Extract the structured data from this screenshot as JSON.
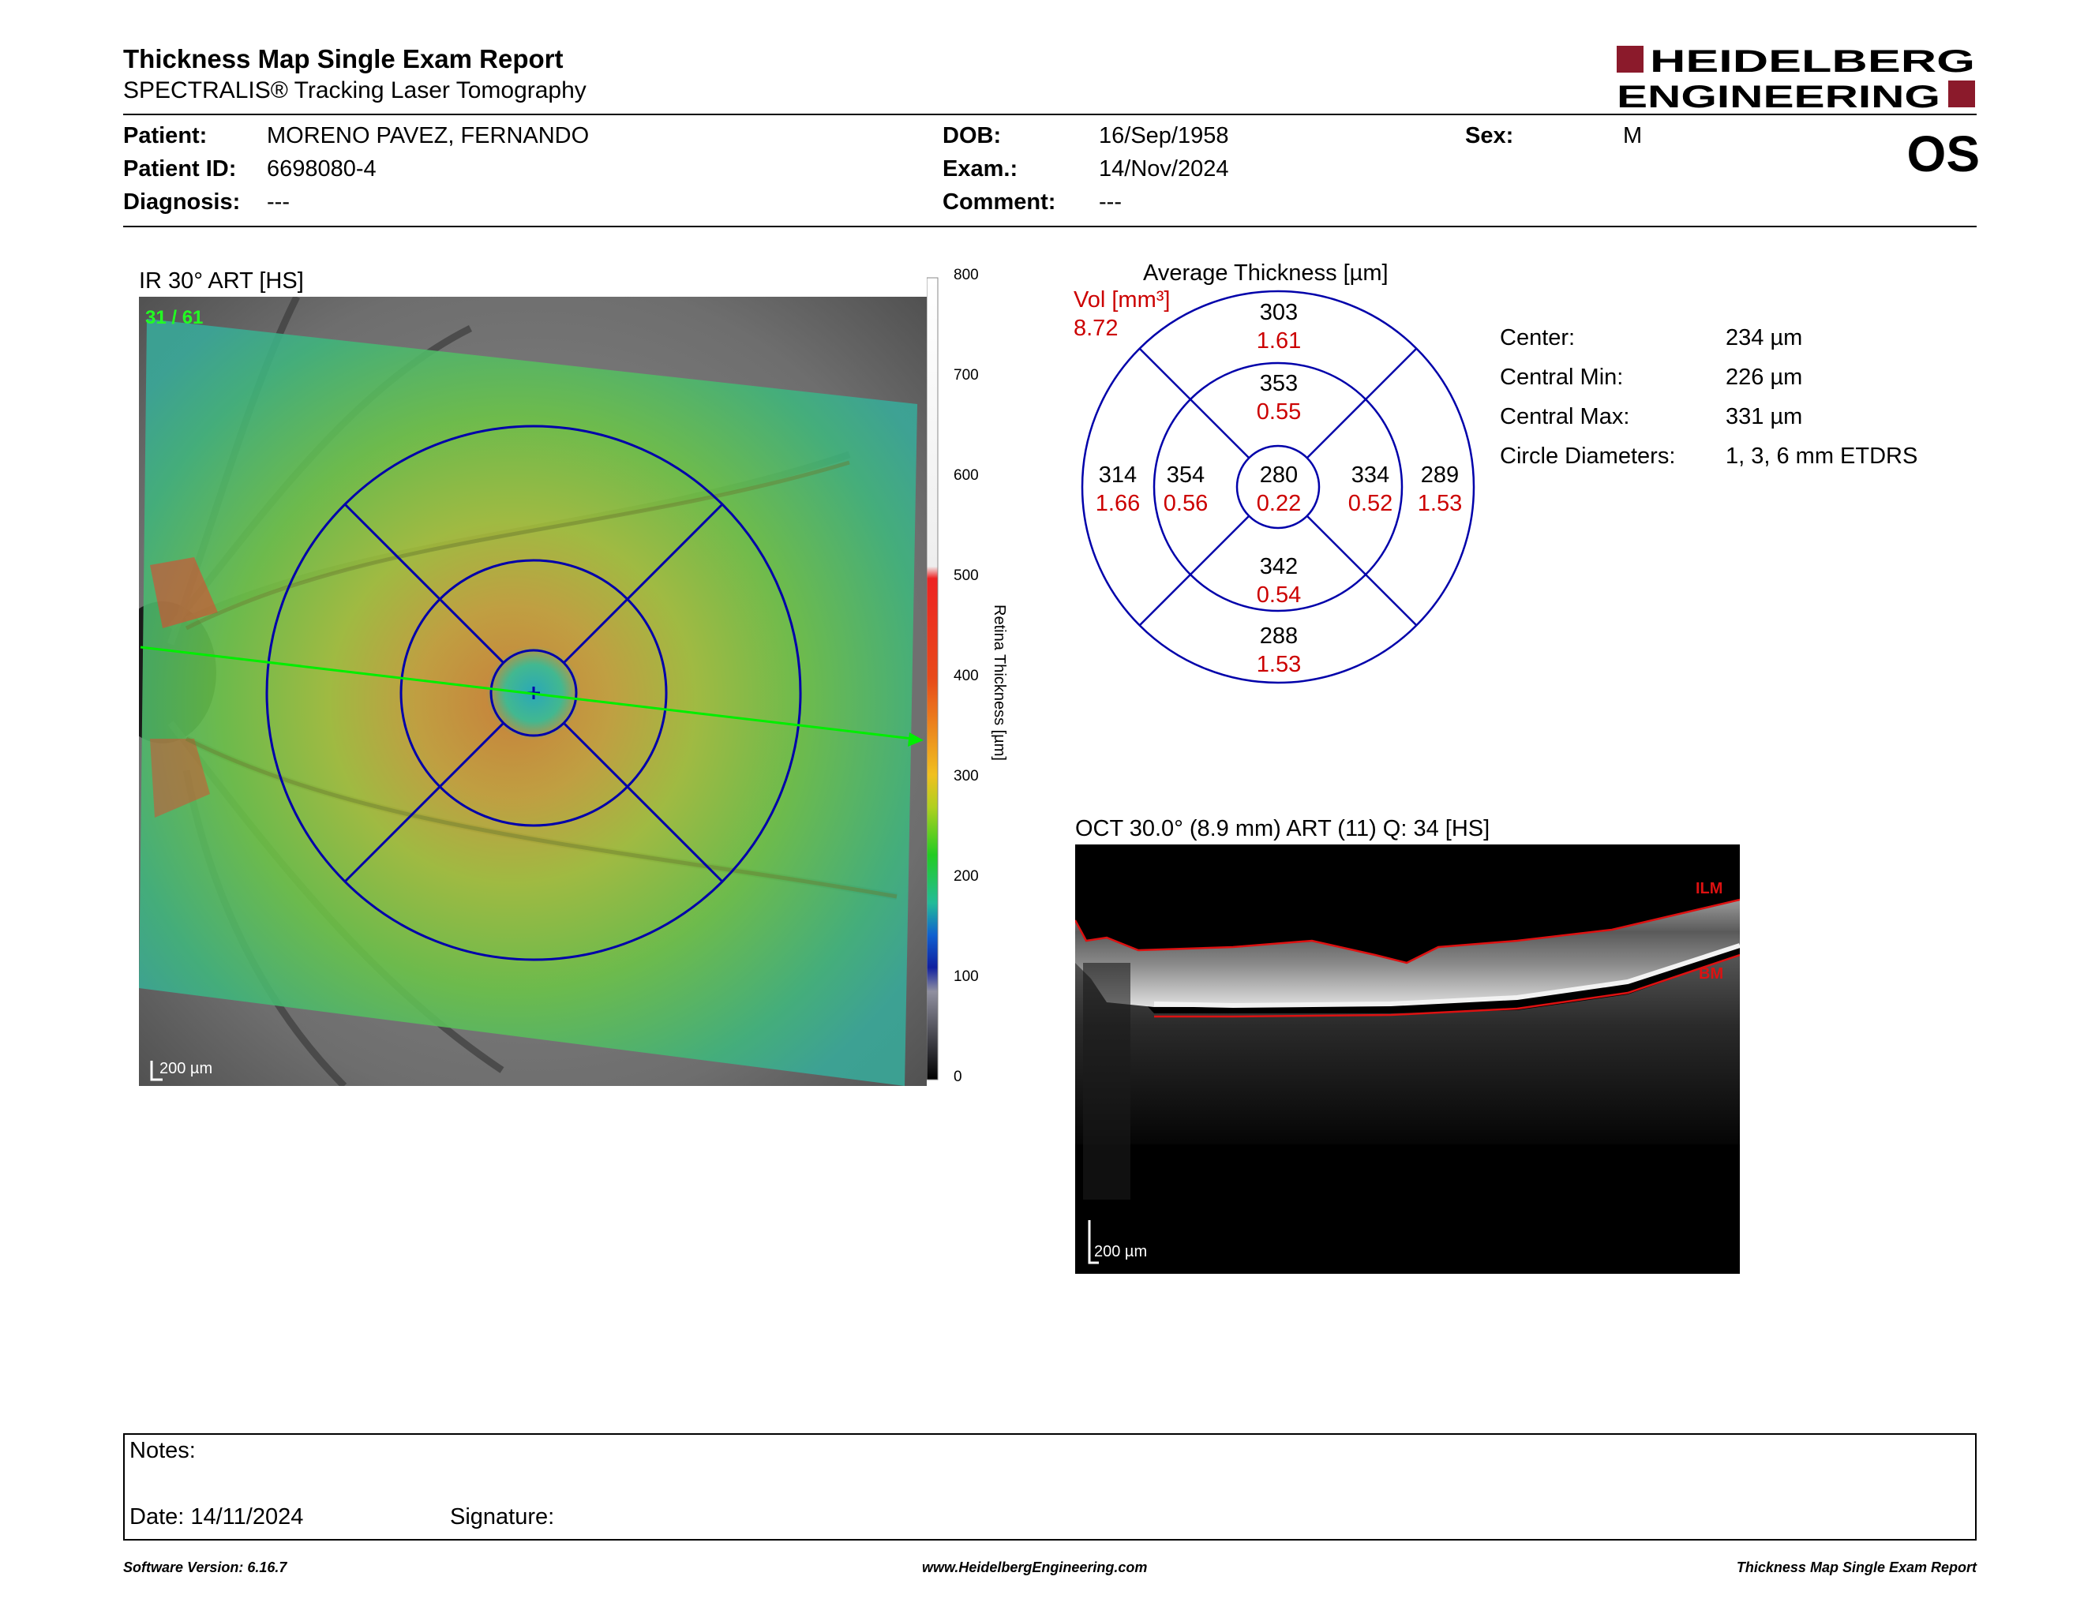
{
  "header": {
    "title": "Thickness Map Single Exam Report",
    "subtitle": "SPECTRALIS® Tracking Laser Tomography",
    "logo_line1": "HEIDELBERG",
    "logo_line2": "ENGINEERING"
  },
  "patient": {
    "patient_label": "Patient:",
    "patient_value": "MORENO PAVEZ, FERNANDO",
    "id_label": "Patient ID:",
    "id_value": "6698080-4",
    "diagnosis_label": "Diagnosis:",
    "diagnosis_value": "---",
    "dob_label": "DOB:",
    "dob_value": "16/Sep/1958",
    "exam_label": "Exam.:",
    "exam_value": "14/Nov/2024",
    "comment_label": "Comment:",
    "comment_value": "---",
    "sex_label": "Sex:",
    "sex_value": "M",
    "eye": "OS"
  },
  "fundus": {
    "title": "IR 30° ART [HS]",
    "frame": "31 / 61",
    "scale_bar": "200 µm",
    "colorbar_label": "Retina Thickness [µm]",
    "colorbar_ticks": [
      "800",
      "700",
      "600",
      "500",
      "400",
      "300",
      "200",
      "100",
      "0"
    ]
  },
  "etdrs": {
    "title": "Average Thickness [µm]",
    "vol_label": "Vol [mm³]",
    "vol_value": "8.72",
    "center": {
      "thickness": "280",
      "volume": "0.22"
    },
    "inner_superior": {
      "thickness": "353",
      "volume": "0.55"
    },
    "inner_temporal": {
      "thickness": "354",
      "volume": "0.56"
    },
    "inner_nasal": {
      "thickness": "334",
      "volume": "0.52"
    },
    "inner_inferior": {
      "thickness": "342",
      "volume": "0.54"
    },
    "outer_superior": {
      "thickness": "303",
      "volume": "1.61"
    },
    "outer_temporal": {
      "thickness": "314",
      "volume": "1.66"
    },
    "outer_nasal": {
      "thickness": "289",
      "volume": "1.53"
    },
    "outer_inferior": {
      "thickness": "288",
      "volume": "1.53"
    }
  },
  "stats": [
    {
      "label": "Center:",
      "value": "234 µm"
    },
    {
      "label": "Central Min:",
      "value": "226 µm"
    },
    {
      "label": "Central Max:",
      "value": "331 µm"
    },
    {
      "label": "Circle Diameters:",
      "value": "1, 3, 6 mm ETDRS"
    }
  ],
  "oct": {
    "title": "OCT 30.0° (8.9 mm) ART (11) Q: 34 [HS]",
    "ilm_label": "ILM",
    "bm_label": "BM",
    "scale_bar": "200 µm"
  },
  "notes": {
    "notes_label": "Notes:",
    "date_label": "Date: 14/11/2024",
    "signature_label": "Signature:"
  },
  "footer": {
    "software": "Software Version: 6.16.7",
    "url": "www.HeidelbergEngineering.com",
    "report": "Thickness Map Single Exam Report"
  },
  "colors": {
    "logo_red": "#8b1a2b",
    "grid_blue": "#0000aa",
    "volume_red": "#cc0000",
    "scan_green": "#00ee00"
  }
}
